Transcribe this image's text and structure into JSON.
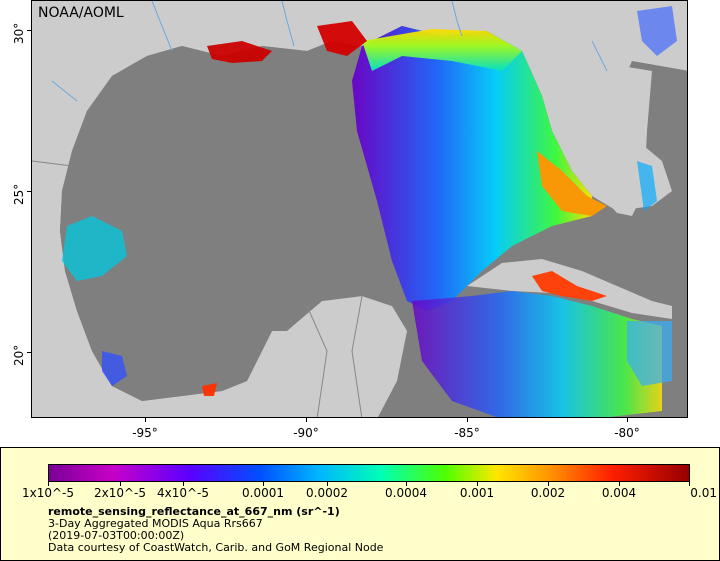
{
  "map": {
    "credit": "NOAA/AOML",
    "lat_ticks": [
      "30°",
      "25°",
      "20°"
    ],
    "lon_ticks": [
      "-95°",
      "-90°",
      "-85°",
      "-80°"
    ],
    "colors": {
      "ocean_nodata": "#7f7f7f",
      "land": "#cccccc",
      "rivers": "#6aa9e0",
      "borders": "#888888"
    }
  },
  "legend": {
    "scale_labels": [
      "1x10^-5",
      "2x10^-5",
      "4x10^-5",
      "0.0001",
      "0.0002",
      "0.0004",
      "0.001",
      "0.002",
      "0.004",
      "0.01"
    ],
    "variable": "remote_sensing_reflectance_at_667_nm (sr^-1)",
    "product": "3-Day Aggregated MODIS Aqua Rrs667",
    "time": "(2019-07-03T00:00:00Z)",
    "courtesy": "Data courtesy of CoastWatch, Carib. and GoM Regional Node",
    "background": "#ffffcc"
  }
}
